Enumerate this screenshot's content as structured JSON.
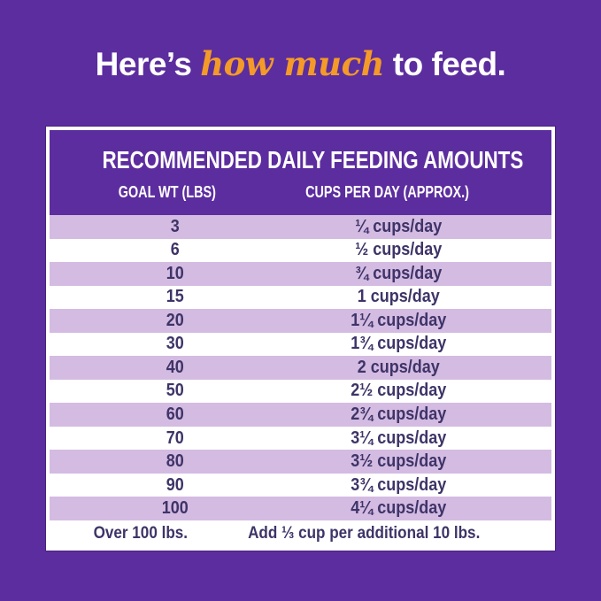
{
  "title": {
    "prefix": "Here’s ",
    "highlight": "how much",
    "suffix": " to feed."
  },
  "colors": {
    "background_purple": "#5c2d9e",
    "row_alt_lavender": "#d4bbe2",
    "row_text": "#3e3468",
    "highlight_orange": "#f49a28",
    "white": "#ffffff"
  },
  "table": {
    "header": "RECOMMENDED DAILY FEEDING AMOUNTS",
    "columns": {
      "goal_wt": "GOAL WT (LBS)",
      "cups_per_day": "CUPS PER DAY (APPROX.)"
    },
    "rows": [
      {
        "goal_wt": "3",
        "cups_per_day": "¼ cups/day"
      },
      {
        "goal_wt": "6",
        "cups_per_day": "½ cups/day"
      },
      {
        "goal_wt": "10",
        "cups_per_day": "¾ cups/day"
      },
      {
        "goal_wt": "15",
        "cups_per_day": "1 cups/day"
      },
      {
        "goal_wt": "20",
        "cups_per_day": "1¼ cups/day"
      },
      {
        "goal_wt": "30",
        "cups_per_day": "1¾ cups/day"
      },
      {
        "goal_wt": "40",
        "cups_per_day": "2 cups/day"
      },
      {
        "goal_wt": "50",
        "cups_per_day": "2½ cups/day"
      },
      {
        "goal_wt": "60",
        "cups_per_day": "2¾ cups/day"
      },
      {
        "goal_wt": "70",
        "cups_per_day": "3¼ cups/day"
      },
      {
        "goal_wt": "80",
        "cups_per_day": "3½ cups/day"
      },
      {
        "goal_wt": "90",
        "cups_per_day": "3¾ cups/day"
      },
      {
        "goal_wt": "100",
        "cups_per_day": "4¼ cups/day"
      }
    ],
    "footer": {
      "goal_wt": "Over 100 lbs.",
      "cups_per_day": "Add ⅓ cup per additional 10 lbs."
    }
  },
  "chart_data": {
    "type": "table",
    "title": "RECOMMENDED DAILY FEEDING AMOUNTS",
    "columns": [
      "GOAL WT (LBS)",
      "CUPS PER DAY (APPROX.)"
    ],
    "rows": [
      [
        "3",
        "¼ cups/day"
      ],
      [
        "6",
        "½ cups/day"
      ],
      [
        "10",
        "¾ cups/day"
      ],
      [
        "15",
        "1 cups/day"
      ],
      [
        "20",
        "1¼ cups/day"
      ],
      [
        "30",
        "1¾ cups/day"
      ],
      [
        "40",
        "2 cups/day"
      ],
      [
        "50",
        "2½ cups/day"
      ],
      [
        "60",
        "2¾ cups/day"
      ],
      [
        "70",
        "3¼ cups/day"
      ],
      [
        "80",
        "3½ cups/day"
      ],
      [
        "90",
        "3¾ cups/day"
      ],
      [
        "100",
        "4¼ cups/day"
      ],
      [
        "Over 100 lbs.",
        "Add ⅓ cup per additional 10 lbs."
      ]
    ],
    "goal_weights_lbs": [
      3,
      6,
      10,
      15,
      20,
      30,
      40,
      50,
      60,
      70,
      80,
      90,
      100
    ],
    "cups_per_day_values": [
      0.25,
      0.5,
      0.75,
      1,
      1.25,
      1.75,
      2,
      2.5,
      2.75,
      3.25,
      3.5,
      3.75,
      4.25
    ],
    "over_100_note": "Add ⅓ cup per additional 10 lbs."
  }
}
